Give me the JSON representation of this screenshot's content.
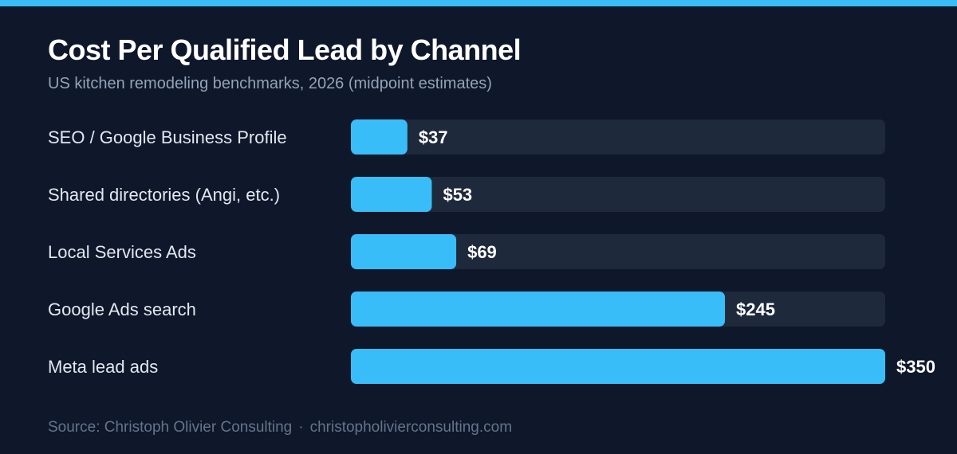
{
  "header": {
    "title": "Cost Per Qualified Lead by Channel",
    "subtitle": "US kitchen remodeling benchmarks, 2026 (midpoint estimates)"
  },
  "footer": {
    "source": "Source: Christoph Olivier Consulting",
    "separator": "·",
    "website": "christopholivierconsulting.com"
  },
  "colors": {
    "accent": "#38bdf8",
    "track": "#1e293b",
    "background": "#0f172a",
    "label": "#e2e8f0",
    "value": "#ffffff"
  },
  "chart_data": {
    "type": "bar",
    "orientation": "horizontal",
    "categories": [
      "SEO / Google Business Profile",
      "Shared directories (Angi, etc.)",
      "Local Services Ads",
      "Google Ads search",
      "Meta lead ads"
    ],
    "values": [
      37,
      53,
      69,
      245,
      350
    ],
    "value_labels": [
      "$37",
      "$53",
      "$69",
      "$245",
      "$350"
    ],
    "xlim": [
      0,
      350
    ],
    "grid": false,
    "legend": "none"
  }
}
